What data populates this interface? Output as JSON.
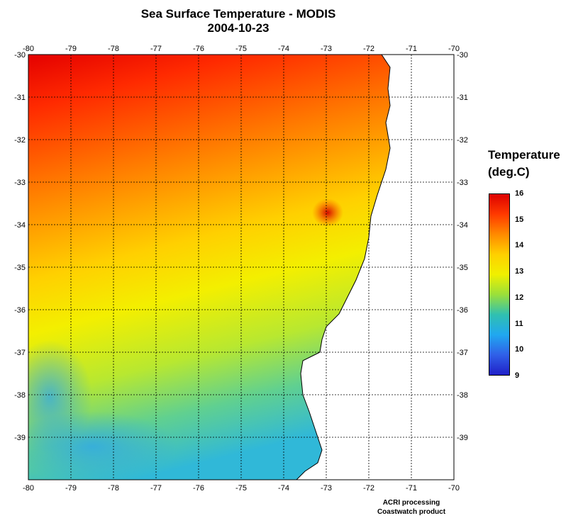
{
  "title": {
    "line1": "Sea Surface Temperature - MODIS",
    "line2": "2004-10-23"
  },
  "map": {
    "lon_labels": [
      "-80",
      "-79",
      "-78",
      "-77",
      "-76",
      "-75",
      "-74",
      "-73",
      "-72",
      "-71",
      "-70"
    ],
    "lat_labels": [
      "-30",
      "-31",
      "-32",
      "-33",
      "-34",
      "-35",
      "-36",
      "-37",
      "-38",
      "-39"
    ],
    "lon_range": [
      -80,
      -70
    ],
    "lat_range": [
      -30,
      -40
    ],
    "grid": "dotted",
    "land_color": "#ffffff",
    "coastline": [
      [
        -71.7,
        -30.0
      ],
      [
        -71.5,
        -30.3
      ],
      [
        -71.55,
        -30.8
      ],
      [
        -71.5,
        -31.2
      ],
      [
        -71.6,
        -31.6
      ],
      [
        -71.5,
        -32.2
      ],
      [
        -71.6,
        -32.7
      ],
      [
        -71.8,
        -33.3
      ],
      [
        -71.95,
        -33.8
      ],
      [
        -72.0,
        -34.3
      ],
      [
        -72.1,
        -34.8
      ],
      [
        -72.3,
        -35.3
      ],
      [
        -72.5,
        -35.7
      ],
      [
        -72.7,
        -36.1
      ],
      [
        -73.0,
        -36.4
      ],
      [
        -73.1,
        -36.7
      ],
      [
        -73.15,
        -37.0
      ],
      [
        -73.55,
        -37.2
      ],
      [
        -73.6,
        -37.5
      ],
      [
        -73.55,
        -38.0
      ],
      [
        -73.4,
        -38.4
      ],
      [
        -73.3,
        -38.7
      ],
      [
        -73.2,
        -39.0
      ],
      [
        -73.1,
        -39.3
      ],
      [
        -73.2,
        -39.6
      ],
      [
        -73.5,
        -39.8
      ],
      [
        -73.7,
        -40.0
      ]
    ]
  },
  "legend": {
    "title_line1": "Temperature",
    "title_line2": "(deg.C)",
    "ticks": [
      "16",
      "15",
      "14",
      "13",
      "12",
      "11",
      "10",
      "9"
    ],
    "min": 9,
    "max": 16,
    "colors": [
      "#dd0000",
      "#ff3a00",
      "#ff8a00",
      "#ffd000",
      "#f0f000",
      "#9ae03a",
      "#30c0b0",
      "#20a8f0",
      "#3060e8",
      "#2020c8"
    ]
  },
  "credits": {
    "line1": "ACRI processing",
    "line2": "Coastwatch product"
  }
}
